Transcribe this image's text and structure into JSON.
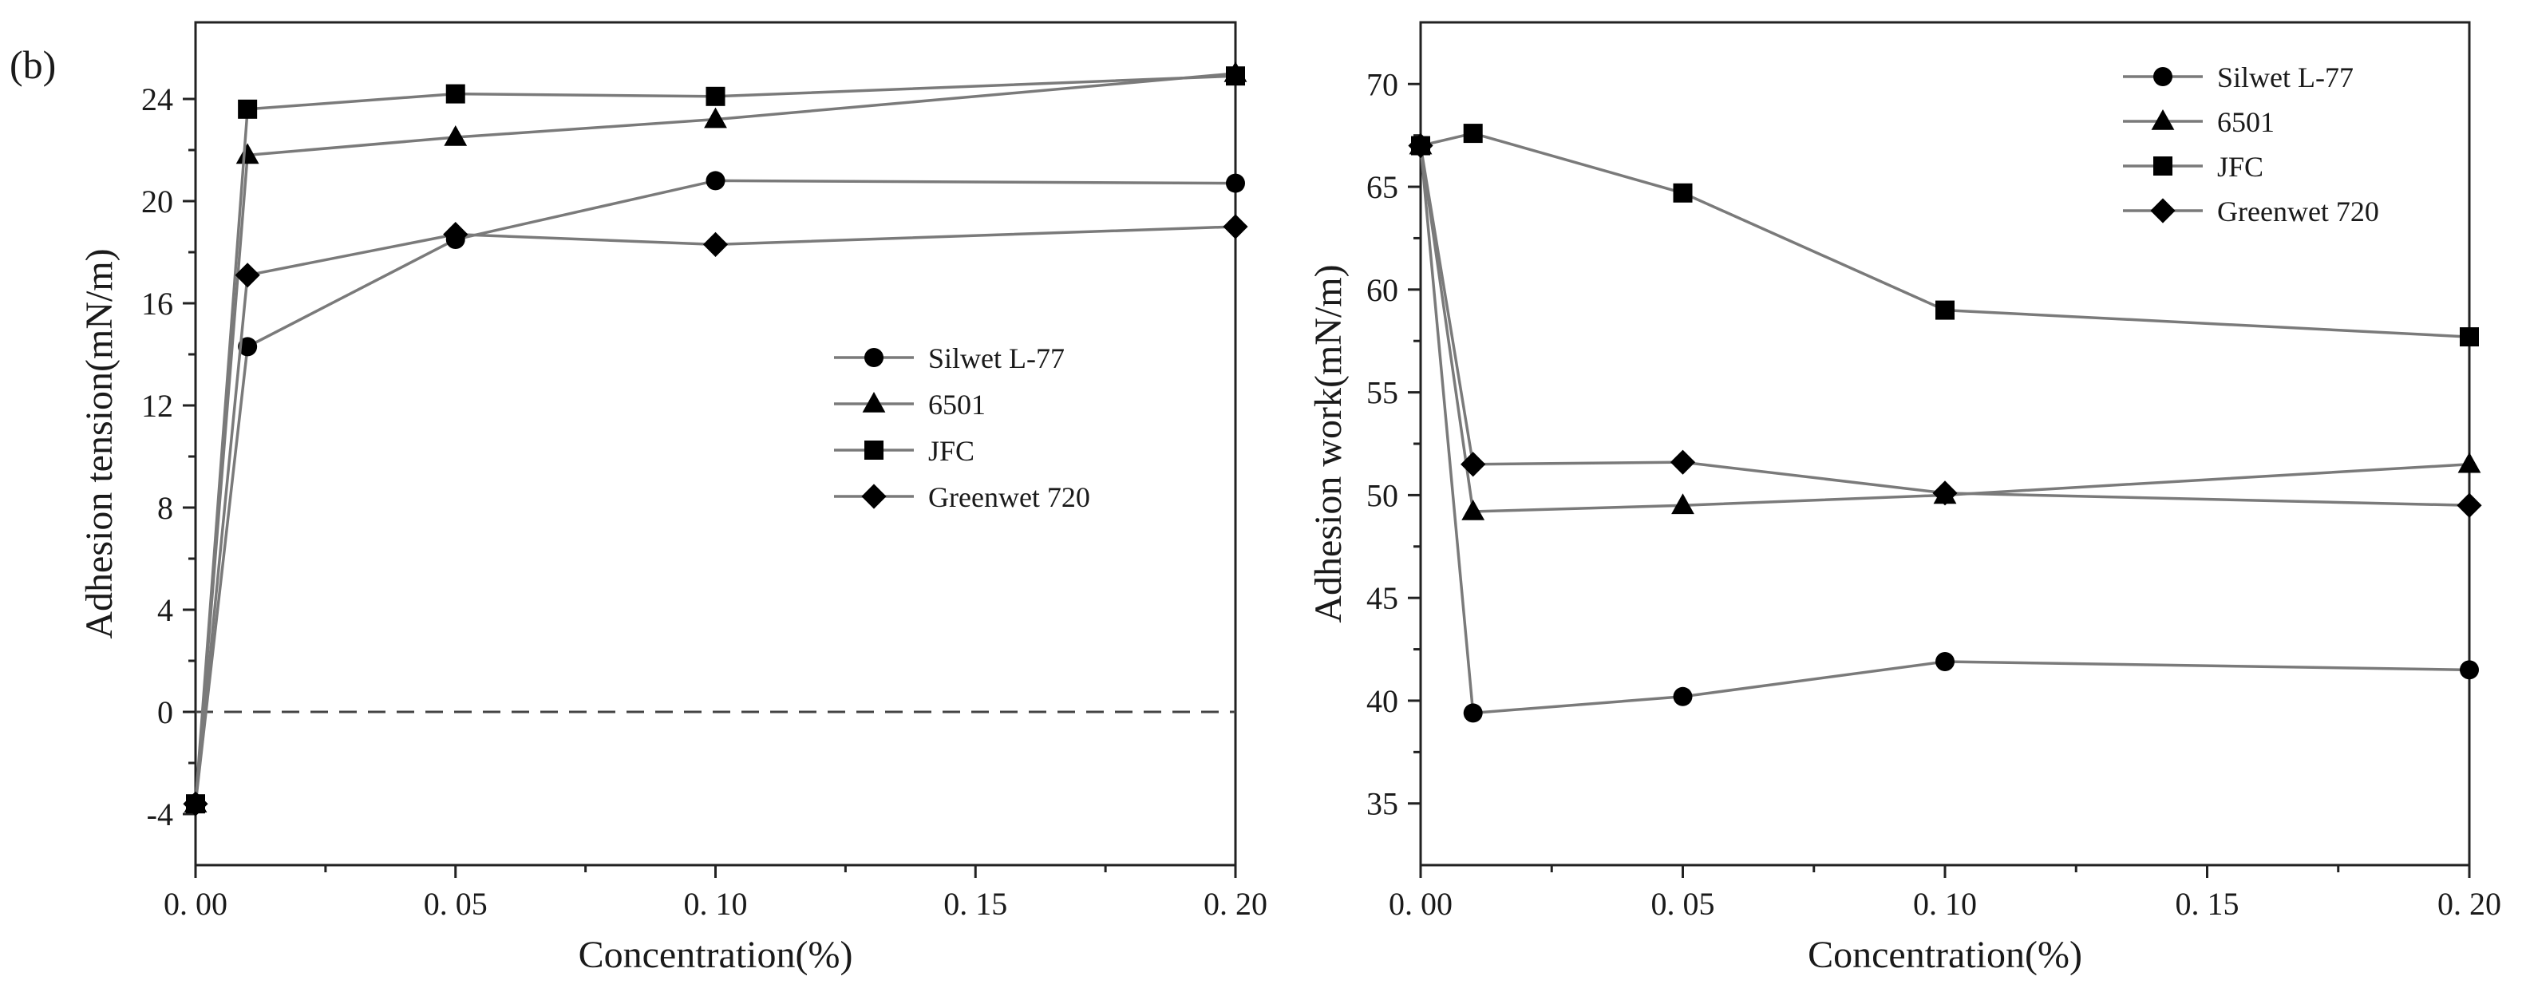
{
  "panel_label": "(b)",
  "chart_data": [
    {
      "type": "line",
      "xlabel": "Concentration(%)",
      "ylabel": "Adhesion tension(mN/m)",
      "xlim": [
        0,
        0.2
      ],
      "ylim": [
        -6,
        27
      ],
      "xticks": [
        0.0,
        0.05,
        0.1,
        0.15,
        0.2
      ],
      "xtick_labels": [
        "0. 00",
        "0. 05",
        "0. 10",
        "0. 15",
        "0. 20"
      ],
      "yticks": [
        -4,
        0,
        4,
        8,
        12,
        16,
        20,
        24
      ],
      "ytick_labels": [
        "-4",
        "0",
        "4",
        "8",
        "12",
        "16",
        "20",
        "24"
      ],
      "reference_line": {
        "y": 0,
        "style": "dashed"
      },
      "legend_position": "center-right",
      "x": [
        0,
        0.01,
        0.05,
        0.1,
        0.2
      ],
      "series": [
        {
          "name": "Silwet L-77",
          "marker": "circle",
          "values": [
            -3.6,
            14.3,
            18.5,
            20.8,
            20.7
          ]
        },
        {
          "name": "6501",
          "marker": "triangle",
          "values": [
            -3.6,
            21.8,
            22.5,
            23.2,
            25.0
          ]
        },
        {
          "name": "JFC",
          "marker": "square",
          "values": [
            -3.6,
            23.6,
            24.2,
            24.1,
            24.9
          ]
        },
        {
          "name": "Greenwet 720",
          "marker": "diamond",
          "values": [
            -3.6,
            17.1,
            18.7,
            18.3,
            19.0
          ]
        }
      ]
    },
    {
      "type": "line",
      "xlabel": "Concentration(%)",
      "ylabel": "Adhesion work(mN/m)",
      "xlim": [
        0,
        0.2
      ],
      "ylim": [
        32,
        73
      ],
      "xticks": [
        0.0,
        0.05,
        0.1,
        0.15,
        0.2
      ],
      "xtick_labels": [
        "0. 00",
        "0. 05",
        "0. 10",
        "0. 15",
        "0. 20"
      ],
      "yticks": [
        35,
        40,
        45,
        50,
        55,
        60,
        65,
        70
      ],
      "ytick_labels": [
        "35",
        "40",
        "45",
        "50",
        "55",
        "60",
        "65",
        "70"
      ],
      "legend_position": "top-right",
      "x": [
        0,
        0.01,
        0.05,
        0.1,
        0.2
      ],
      "series": [
        {
          "name": "Silwet L-77",
          "marker": "circle",
          "values": [
            67.0,
            39.4,
            40.2,
            41.9,
            41.5
          ]
        },
        {
          "name": "6501",
          "marker": "triangle",
          "values": [
            67.0,
            49.2,
            49.5,
            50.0,
            51.5
          ]
        },
        {
          "name": "JFC",
          "marker": "square",
          "values": [
            67.0,
            67.6,
            64.7,
            59.0,
            57.7
          ]
        },
        {
          "name": "Greenwet 720",
          "marker": "diamond",
          "values": [
            67.0,
            51.5,
            51.6,
            50.1,
            49.5
          ]
        }
      ]
    }
  ]
}
